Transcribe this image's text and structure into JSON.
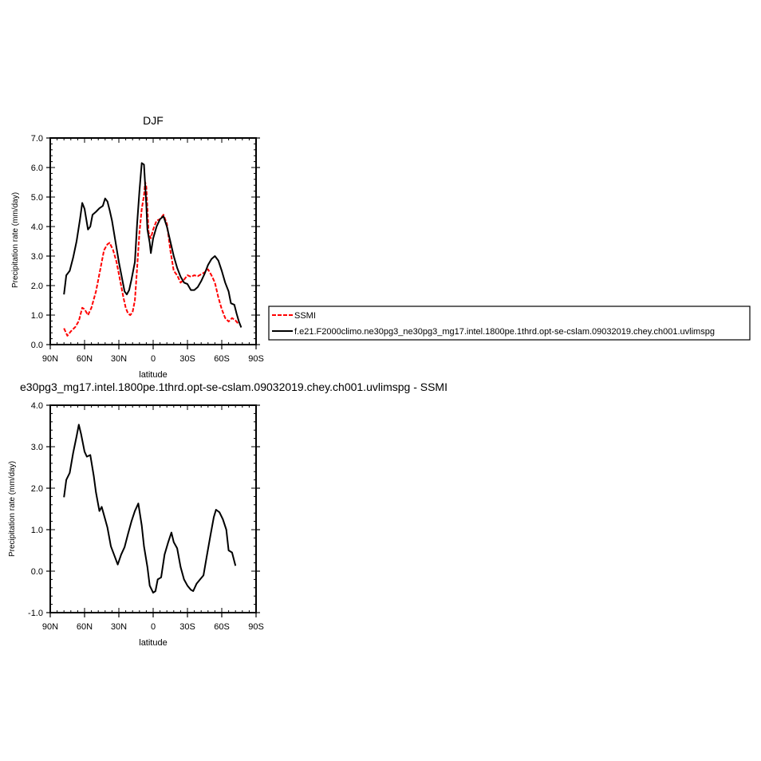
{
  "chart_data": [
    {
      "type": "line",
      "title": "DJF",
      "xlabel": "latitude",
      "ylabel": "Precipitation rate (mm/day)",
      "xlim": [
        90,
        -90
      ],
      "ylim": [
        0,
        7
      ],
      "x_ticks": [
        {
          "value": 90,
          "label": "90N"
        },
        {
          "value": 60,
          "label": "60N"
        },
        {
          "value": 30,
          "label": "30N"
        },
        {
          "value": 0,
          "label": "0"
        },
        {
          "value": -30,
          "label": "30S"
        },
        {
          "value": -60,
          "label": "60S"
        },
        {
          "value": -90,
          "label": "90S"
        }
      ],
      "y_ticks": [
        {
          "value": 0,
          "label": "0.0"
        },
        {
          "value": 1,
          "label": "1.0"
        },
        {
          "value": 2,
          "label": "2.0"
        },
        {
          "value": 3,
          "label": "3.0"
        },
        {
          "value": 4,
          "label": "4.0"
        },
        {
          "value": 5,
          "label": "5.0"
        },
        {
          "value": 6,
          "label": "6.0"
        },
        {
          "value": 7,
          "label": "7.0"
        }
      ],
      "legend": "right",
      "series": [
        {
          "name": "SSMI",
          "color": "#ff0000",
          "dash": true,
          "points": [
            [
              78,
              0.55
            ],
            [
              75,
              0.3
            ],
            [
              72,
              0.45
            ],
            [
              68,
              0.6
            ],
            [
              65,
              0.8
            ],
            [
              62,
              1.25
            ],
            [
              60,
              1.2
            ],
            [
              57,
              1.0
            ],
            [
              54,
              1.25
            ],
            [
              50,
              1.8
            ],
            [
              46,
              2.6
            ],
            [
              43,
              3.2
            ],
            [
              40,
              3.4
            ],
            [
              38,
              3.45
            ],
            [
              35,
              3.2
            ],
            [
              32,
              2.8
            ],
            [
              29,
              2.2
            ],
            [
              26,
              1.6
            ],
            [
              24,
              1.25
            ],
            [
              22,
              1.05
            ],
            [
              20,
              1.0
            ],
            [
              18,
              1.1
            ],
            [
              16,
              1.5
            ],
            [
              14,
              2.6
            ],
            [
              12,
              3.8
            ],
            [
              10,
              4.6
            ],
            [
              8,
              5.05
            ],
            [
              7,
              5.5
            ],
            [
              6,
              5.35
            ],
            [
              5,
              4.6
            ],
            [
              4,
              3.8
            ],
            [
              2,
              3.6
            ],
            [
              0,
              3.9
            ],
            [
              -3,
              4.2
            ],
            [
              -6,
              4.25
            ],
            [
              -9,
              4.4
            ],
            [
              -12,
              4.1
            ],
            [
              -15,
              3.2
            ],
            [
              -18,
              2.5
            ],
            [
              -21,
              2.35
            ],
            [
              -24,
              2.1
            ],
            [
              -27,
              2.2
            ],
            [
              -30,
              2.35
            ],
            [
              -33,
              2.3
            ],
            [
              -36,
              2.35
            ],
            [
              -39,
              2.32
            ],
            [
              -42,
              2.38
            ],
            [
              -45,
              2.45
            ],
            [
              -48,
              2.55
            ],
            [
              -51,
              2.35
            ],
            [
              -54,
              2.1
            ],
            [
              -57,
              1.6
            ],
            [
              -60,
              1.2
            ],
            [
              -63,
              0.9
            ],
            [
              -66,
              0.78
            ],
            [
              -69,
              0.9
            ],
            [
              -72,
              0.82
            ],
            [
              -75,
              0.68
            ]
          ]
        },
        {
          "name": "f.e21.F2000climo.ne30pg3_ne30pg3_mg17.intel.1800pe.1thrd.opt-se-cslam.09032019.chey.ch001.uvlimspg",
          "color": "#000000",
          "dash": false,
          "points": [
            [
              78,
              1.7
            ],
            [
              76,
              2.35
            ],
            [
              73,
              2.5
            ],
            [
              70,
              2.95
            ],
            [
              67,
              3.5
            ],
            [
              64,
              4.25
            ],
            [
              62,
              4.8
            ],
            [
              60,
              4.6
            ],
            [
              57,
              3.9
            ],
            [
              55,
              4.0
            ],
            [
              53,
              4.4
            ],
            [
              50,
              4.5
            ],
            [
              47,
              4.62
            ],
            [
              44,
              4.7
            ],
            [
              42,
              4.95
            ],
            [
              40,
              4.85
            ],
            [
              38,
              4.55
            ],
            [
              36,
              4.2
            ],
            [
              33,
              3.5
            ],
            [
              30,
              2.8
            ],
            [
              27,
              2.2
            ],
            [
              25,
              1.8
            ],
            [
              23,
              1.7
            ],
            [
              21,
              1.85
            ],
            [
              19,
              2.2
            ],
            [
              16,
              2.8
            ],
            [
              14,
              4.1
            ],
            [
              12,
              5.2
            ],
            [
              10,
              6.15
            ],
            [
              8,
              6.1
            ],
            [
              6,
              4.75
            ],
            [
              5,
              3.9
            ],
            [
              3,
              3.45
            ],
            [
              2,
              3.1
            ],
            [
              0,
              3.6
            ],
            [
              -3,
              4.0
            ],
            [
              -6,
              4.25
            ],
            [
              -9,
              4.35
            ],
            [
              -12,
              4.0
            ],
            [
              -15,
              3.5
            ],
            [
              -18,
              3.0
            ],
            [
              -21,
              2.6
            ],
            [
              -24,
              2.3
            ],
            [
              -27,
              2.1
            ],
            [
              -30,
              2.05
            ],
            [
              -33,
              1.85
            ],
            [
              -36,
              1.85
            ],
            [
              -39,
              1.95
            ],
            [
              -42,
              2.15
            ],
            [
              -45,
              2.4
            ],
            [
              -48,
              2.7
            ],
            [
              -51,
              2.9
            ],
            [
              -54,
              3.0
            ],
            [
              -57,
              2.85
            ],
            [
              -60,
              2.5
            ],
            [
              -63,
              2.1
            ],
            [
              -66,
              1.8
            ],
            [
              -68,
              1.4
            ],
            [
              -71,
              1.35
            ],
            [
              -73,
              1.05
            ],
            [
              -75,
              0.78
            ],
            [
              -77,
              0.58
            ]
          ]
        }
      ]
    },
    {
      "type": "line",
      "title": "e30pg3_mg17.intel.1800pe.1thrd.opt-se-cslam.09032019.chey.ch001.uvlimspg - SSMI",
      "xlabel": "latitude",
      "ylabel": "Precipitation rate (mm/day)",
      "xlim": [
        90,
        -90
      ],
      "ylim": [
        -1,
        4
      ],
      "x_ticks": [
        {
          "value": 90,
          "label": "90N"
        },
        {
          "value": 60,
          "label": "60N"
        },
        {
          "value": 30,
          "label": "30N"
        },
        {
          "value": 0,
          "label": "0"
        },
        {
          "value": -30,
          "label": "30S"
        },
        {
          "value": -60,
          "label": "60S"
        },
        {
          "value": -90,
          "label": "90S"
        }
      ],
      "y_ticks": [
        {
          "value": -1,
          "label": "-1.0"
        },
        {
          "value": 0,
          "label": "0.0"
        },
        {
          "value": 1,
          "label": "1.0"
        },
        {
          "value": 2,
          "label": "2.0"
        },
        {
          "value": 3,
          "label": "3.0"
        },
        {
          "value": 4,
          "label": "4.0"
        }
      ],
      "series": [
        {
          "color": "#000000",
          "dash": false,
          "points": [
            [
              78,
              1.78
            ],
            [
              76,
              2.2
            ],
            [
              73,
              2.37
            ],
            [
              70,
              2.85
            ],
            [
              67,
              3.25
            ],
            [
              65,
              3.53
            ],
            [
              63,
              3.3
            ],
            [
              60,
              2.88
            ],
            [
              58,
              2.76
            ],
            [
              55,
              2.8
            ],
            [
              52,
              2.3
            ],
            [
              50,
              1.9
            ],
            [
              47,
              1.45
            ],
            [
              45,
              1.55
            ],
            [
              43,
              1.35
            ],
            [
              40,
              1.05
            ],
            [
              37,
              0.6
            ],
            [
              34,
              0.38
            ],
            [
              31,
              0.16
            ],
            [
              28,
              0.4
            ],
            [
              25,
              0.58
            ],
            [
              22,
              0.9
            ],
            [
              19,
              1.2
            ],
            [
              16,
              1.45
            ],
            [
              13,
              1.63
            ],
            [
              10,
              1.1
            ],
            [
              8,
              0.6
            ],
            [
              5,
              0.1
            ],
            [
              3,
              -0.35
            ],
            [
              0,
              -0.52
            ],
            [
              -2,
              -0.48
            ],
            [
              -4,
              -0.2
            ],
            [
              -7,
              -0.15
            ],
            [
              -10,
              0.4
            ],
            [
              -13,
              0.68
            ],
            [
              -16,
              0.93
            ],
            [
              -18,
              0.7
            ],
            [
              -21,
              0.55
            ],
            [
              -24,
              0.1
            ],
            [
              -27,
              -0.2
            ],
            [
              -30,
              -0.35
            ],
            [
              -33,
              -0.45
            ],
            [
              -35,
              -0.48
            ],
            [
              -38,
              -0.3
            ],
            [
              -41,
              -0.2
            ],
            [
              -44,
              -0.1
            ],
            [
              -47,
              0.38
            ],
            [
              -50,
              0.85
            ],
            [
              -53,
              1.3
            ],
            [
              -55,
              1.48
            ],
            [
              -58,
              1.42
            ],
            [
              -61,
              1.25
            ],
            [
              -64,
              1.0
            ],
            [
              -66,
              0.5
            ],
            [
              -69,
              0.45
            ],
            [
              -72,
              0.13
            ]
          ]
        }
      ]
    }
  ]
}
